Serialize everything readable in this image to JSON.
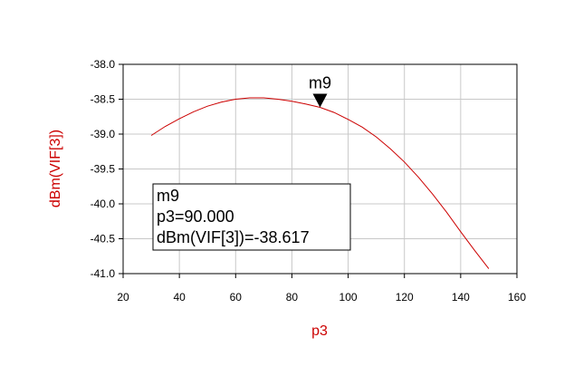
{
  "chart_data": {
    "type": "line",
    "xlabel": "p3",
    "ylabel": "dBm(VIF[3])",
    "xlim": [
      20,
      160
    ],
    "ylim": [
      -41.0,
      -38.0
    ],
    "grid": true,
    "x_ticks": [
      20,
      40,
      60,
      80,
      100,
      120,
      140,
      160
    ],
    "y_ticks": [
      -38.0,
      -38.5,
      -39.0,
      -39.5,
      -40.0,
      -40.5,
      -41.0
    ],
    "x_tick_labels": [
      "20",
      "40",
      "60",
      "80",
      "100",
      "120",
      "140",
      "160"
    ],
    "y_tick_labels": [
      "-38.0",
      "-38.5",
      "-39.0",
      "-39.5",
      "-40.0",
      "-40.5",
      "-41.0"
    ],
    "series": [
      {
        "color": "#cc0000",
        "x": [
          30,
          35,
          40,
          45,
          50,
          55,
          60,
          65,
          70,
          75,
          80,
          85,
          90,
          95,
          100,
          105,
          110,
          115,
          120,
          125,
          130,
          135,
          140,
          145,
          150
        ],
        "y": [
          -39.02,
          -38.89,
          -38.78,
          -38.68,
          -38.6,
          -38.54,
          -38.5,
          -38.48,
          -38.48,
          -38.5,
          -38.53,
          -38.57,
          -38.617,
          -38.69,
          -38.79,
          -38.9,
          -39.04,
          -39.21,
          -39.4,
          -39.62,
          -39.86,
          -40.12,
          -40.4,
          -40.67,
          -40.93
        ]
      }
    ],
    "marker": {
      "name": "m9",
      "x": 90.0,
      "y": -38.617,
      "readout": [
        "m9",
        "p3=90.000",
        "dBm(VIF[3])=-38.617"
      ]
    }
  }
}
